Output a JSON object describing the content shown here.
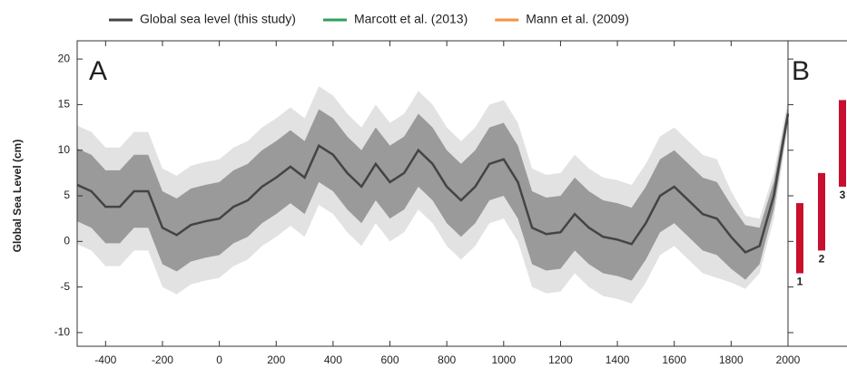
{
  "chart_data": {
    "type": "line",
    "ylabel": "Global Sea Level (cm)",
    "panel_a_label": "A",
    "panel_b_label": "B",
    "x": [
      -500,
      -450,
      -400,
      -350,
      -300,
      -250,
      -200,
      -150,
      -100,
      -50,
      0,
      50,
      100,
      150,
      200,
      250,
      300,
      350,
      400,
      450,
      500,
      550,
      600,
      650,
      700,
      750,
      800,
      850,
      900,
      950,
      1000,
      1050,
      1100,
      1150,
      1200,
      1250,
      1300,
      1350,
      1400,
      1450,
      1500,
      1550,
      1600,
      1650,
      1700,
      1750,
      1800,
      1850,
      1900,
      1950,
      2000
    ],
    "series": [
      {
        "name": "Global sea level (this study)",
        "color": "#444444",
        "values": [
          6.2,
          5.5,
          3.8,
          3.8,
          5.5,
          5.5,
          1.5,
          0.7,
          1.8,
          2.2,
          2.5,
          3.8,
          4.5,
          6,
          7,
          8.2,
          7,
          10.5,
          9.5,
          7.5,
          6,
          8.5,
          6.5,
          7.5,
          10,
          8.5,
          6,
          4.5,
          6,
          8.5,
          9,
          6.5,
          1.5,
          0.8,
          1,
          3,
          1.5,
          0.5,
          0.2,
          -0.3,
          2,
          5,
          6,
          4.5,
          3,
          2.5,
          0.5,
          -1.2,
          -0.5,
          5,
          14
        ],
        "inner_error": [
          4,
          4,
          4,
          4,
          4,
          4,
          4,
          4,
          4,
          4,
          4,
          4,
          4,
          4,
          4,
          4,
          4,
          4,
          4,
          4,
          4,
          4,
          4,
          4,
          4,
          4,
          4,
          4,
          4,
          4,
          4,
          4,
          4,
          4,
          4,
          4,
          4,
          4,
          4,
          4,
          4,
          4,
          4,
          4,
          4,
          4,
          3.5,
          3,
          2,
          1.5,
          0.8
        ],
        "outer_error": [
          6.5,
          6.5,
          6.5,
          6.5,
          6.5,
          6.5,
          6.5,
          6.5,
          6.5,
          6.5,
          6.5,
          6.5,
          6.5,
          6.5,
          6.5,
          6.5,
          6.5,
          6.5,
          6.5,
          6.5,
          6.5,
          6.5,
          6.5,
          6.5,
          6.5,
          6.5,
          6.5,
          6.5,
          6.5,
          6.5,
          6.5,
          6.5,
          6.5,
          6.5,
          6.5,
          6.5,
          6.5,
          6.5,
          6.5,
          6.5,
          6.5,
          6.5,
          6.5,
          6.5,
          6.5,
          6.5,
          5,
          4,
          3,
          2.5,
          1.5
        ],
        "inner_color": "#9a9a9a",
        "outer_color": "#e2e2e2"
      },
      {
        "name": "Marcott et al. (2013)",
        "color": "#2ca25f"
      },
      {
        "name": "Mann et al. (2009)",
        "color": "#f5923e"
      }
    ],
    "xlim": [
      -500,
      2000
    ],
    "xticks": [
      -400,
      -200,
      0,
      200,
      400,
      600,
      800,
      1000,
      1200,
      1400,
      1600,
      1800,
      2000
    ],
    "ylim": [
      -11.5,
      22
    ],
    "yticks": [
      -10,
      -5,
      0,
      5,
      10,
      15,
      20
    ],
    "panel_b": {
      "categories": [
        "1",
        "2",
        "3"
      ],
      "low": [
        -3.5,
        -1,
        6
      ],
      "high": [
        4.2,
        7.5,
        15.5
      ],
      "color": "#c8102e"
    }
  }
}
